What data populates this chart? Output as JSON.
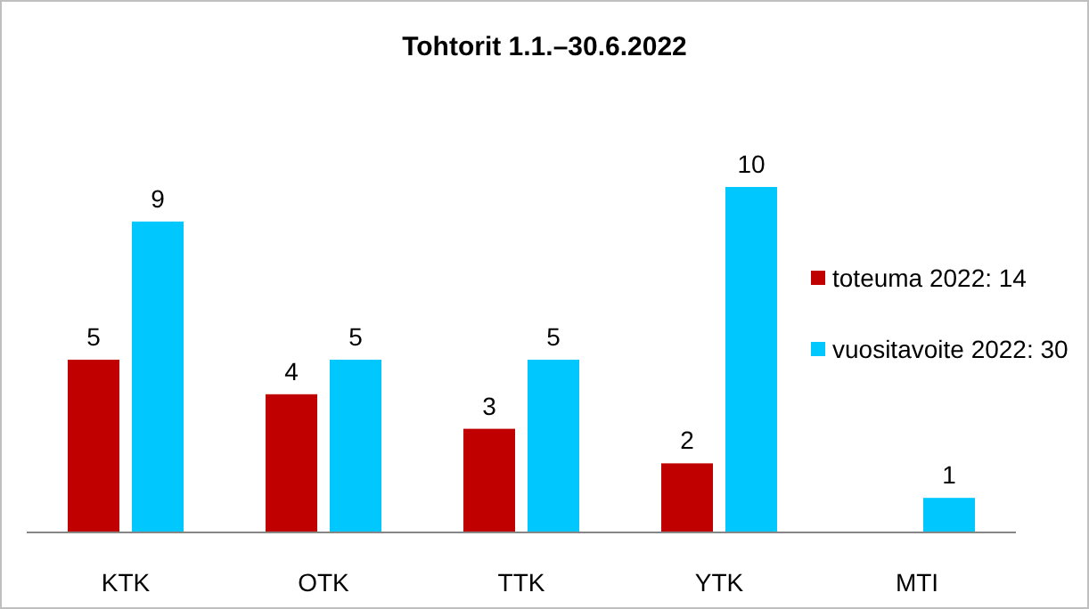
{
  "chart_data": {
    "type": "bar",
    "title": "Tohtorit 1.1.–30.6.2022",
    "categories": [
      "KTK",
      "OTK",
      "TTK",
      "YTK",
      "MTI"
    ],
    "series": [
      {
        "name": "toteuma 2022: 14",
        "color": "#c00000",
        "values": [
          5,
          4,
          3,
          2,
          null
        ]
      },
      {
        "name": "vuositavoite 2022: 30",
        "color": "#00c8ff",
        "values": [
          9,
          5,
          5,
          10,
          1
        ]
      }
    ],
    "data_labels": true,
    "legend": "right"
  }
}
